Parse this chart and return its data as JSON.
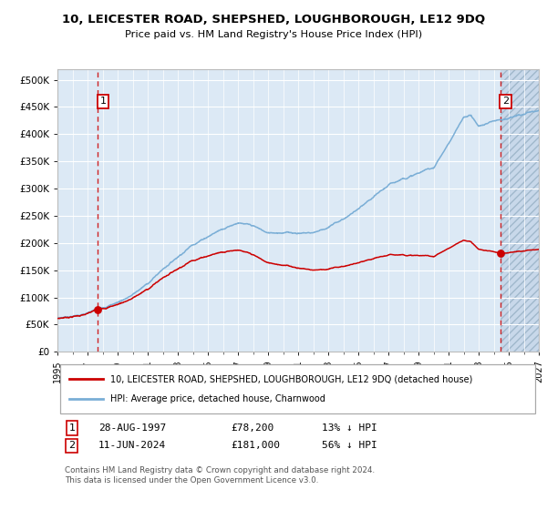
{
  "title": "10, LEICESTER ROAD, SHEPSHED, LOUGHBOROUGH, LE12 9DQ",
  "subtitle": "Price paid vs. HM Land Registry's House Price Index (HPI)",
  "legend_line1": "10, LEICESTER ROAD, SHEPSHED, LOUGHBOROUGH, LE12 9DQ (detached house)",
  "legend_line2": "HPI: Average price, detached house, Charnwood",
  "transaction1_date": "28-AUG-1997",
  "transaction1_price": "£78,200",
  "transaction1_hpi": "13% ↓ HPI",
  "transaction2_date": "11-JUN-2024",
  "transaction2_price": "£181,000",
  "transaction2_hpi": "56% ↓ HPI",
  "footer": "Contains HM Land Registry data © Crown copyright and database right 2024.\nThis data is licensed under the Open Government Licence v3.0.",
  "xlim_start": 1995.0,
  "xlim_end": 2027.0,
  "ylim_bottom": 0,
  "ylim_top": 520000,
  "yticks": [
    0,
    50000,
    100000,
    150000,
    200000,
    250000,
    300000,
    350000,
    400000,
    450000,
    500000
  ],
  "transaction1_x": 1997.66,
  "transaction1_y": 78200,
  "transaction2_x": 2024.44,
  "transaction2_y": 181000,
  "bg_color": "#dce9f5",
  "hatch_bg_color": "#c8d8ea",
  "grid_color": "#ffffff",
  "red_line_color": "#cc0000",
  "blue_line_color": "#7aaed6",
  "dashed_line_color": "#cc0000",
  "marker_color": "#cc0000",
  "hpi_anchors_year": [
    1995,
    1996,
    1997,
    1998,
    1999,
    2000,
    2001,
    2002,
    2003,
    2004,
    2005,
    2006,
    2007,
    2008,
    2009,
    2010,
    2011,
    2012,
    2013,
    2014,
    2015,
    2016,
    2017,
    2018,
    2019,
    2020,
    2021,
    2022,
    2022.5,
    2023,
    2023.5,
    2024,
    2024.5,
    2025,
    2026,
    2027
  ],
  "hpi_anchors_val": [
    62000,
    67000,
    72000,
    82000,
    93000,
    108000,
    128000,
    155000,
    180000,
    205000,
    222000,
    238000,
    252000,
    243000,
    228000,
    232000,
    232000,
    234000,
    245000,
    260000,
    278000,
    295000,
    315000,
    330000,
    340000,
    350000,
    395000,
    440000,
    445000,
    425000,
    430000,
    435000,
    440000,
    443000,
    448000,
    452000
  ]
}
